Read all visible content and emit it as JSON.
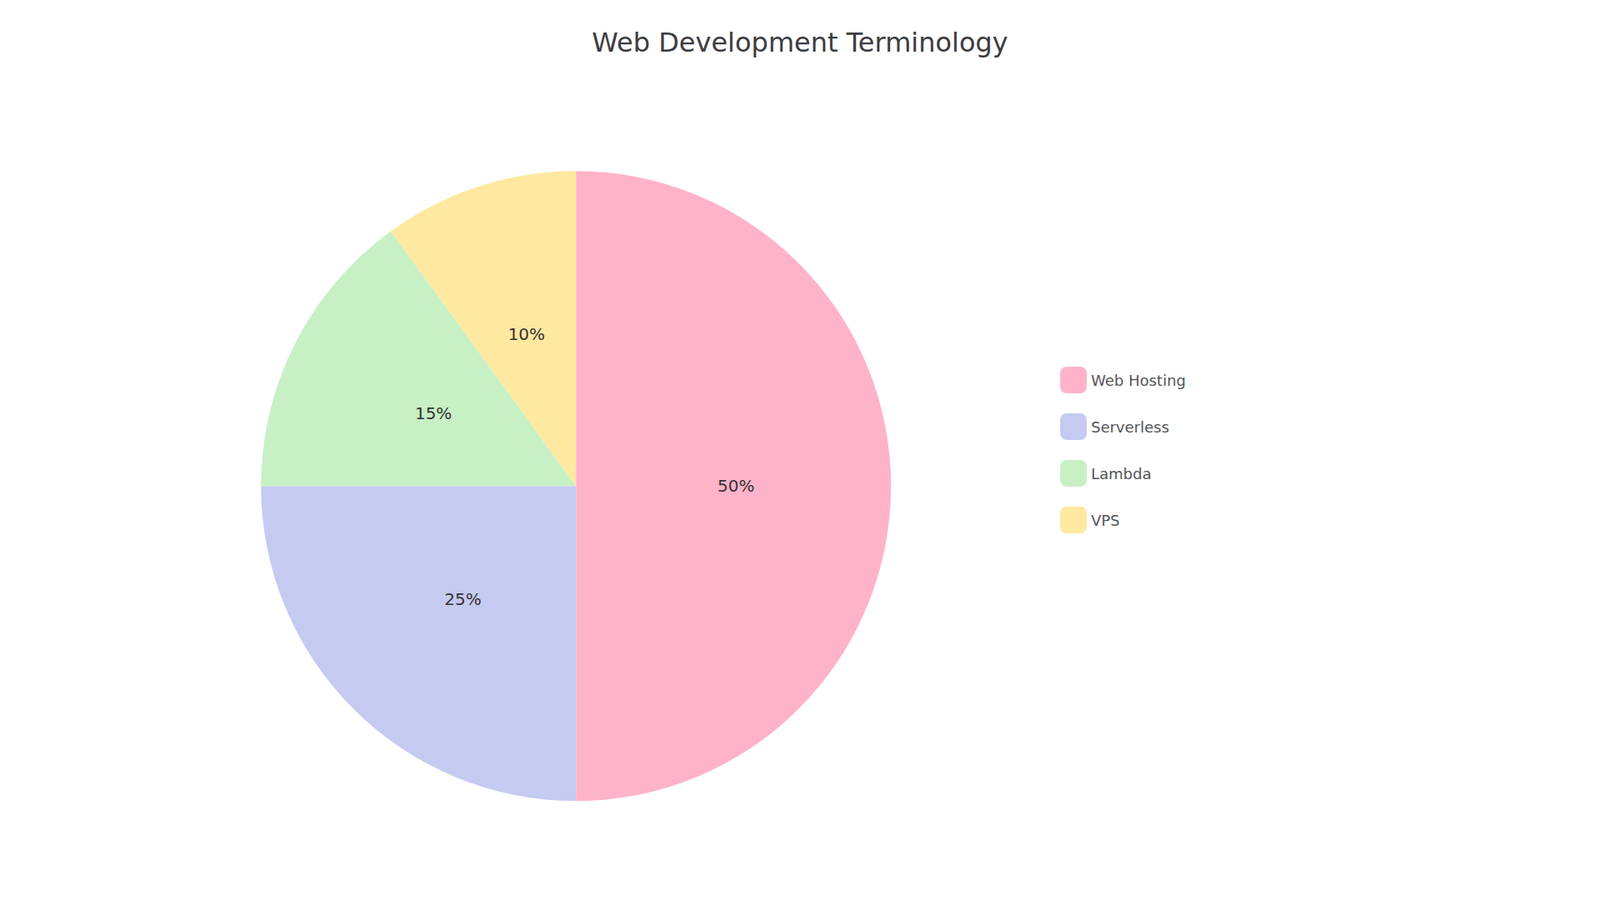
{
  "chart_data": {
    "type": "pie",
    "title": "Web Development Terminology",
    "categories": [
      "Web Hosting",
      "Serverless",
      "Lambda",
      "VPS"
    ],
    "values": [
      50,
      25,
      15,
      10
    ],
    "value_labels": [
      "50%",
      "25%",
      "15%",
      "10%"
    ],
    "colors": [
      "#FFB3C8",
      "#C5CAF0",
      "#C8F0C5",
      "#FFE8A0"
    ],
    "data_labels": true,
    "legend": "right"
  }
}
